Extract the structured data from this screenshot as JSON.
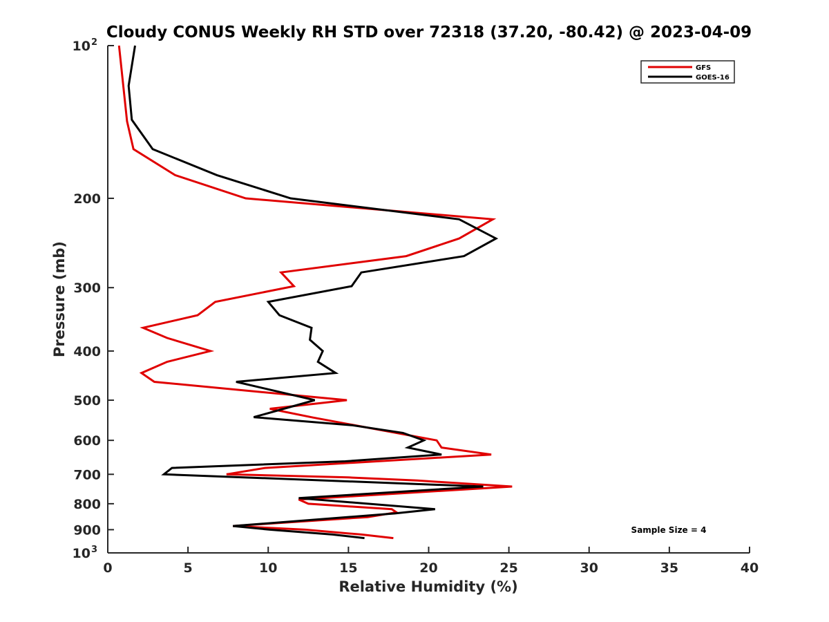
{
  "chart_data": {
    "type": "line",
    "title": "Cloudy CONUS Weekly RH STD over 72318 (37.20, -80.42) @ 2023-04-09",
    "xlabel": "Relative Humidity (%)",
    "ylabel": "Pressure (mb)",
    "xlim": [
      0,
      40
    ],
    "ylim": [
      100,
      1000
    ],
    "yscale": "log",
    "y_reversed": true,
    "grid": false,
    "x_ticks": [
      {
        "value": 0,
        "label": "0"
      },
      {
        "value": 5,
        "label": "5"
      },
      {
        "value": 10,
        "label": "10"
      },
      {
        "value": 15,
        "label": "15"
      },
      {
        "value": 20,
        "label": "20"
      },
      {
        "value": 25,
        "label": "25"
      },
      {
        "value": 30,
        "label": "30"
      },
      {
        "value": 35,
        "label": "35"
      },
      {
        "value": 40,
        "label": "40"
      }
    ],
    "y_ticks": [
      {
        "value": 100,
        "label": "10",
        "sup": "2"
      },
      {
        "value": 200,
        "label": "200"
      },
      {
        "value": 300,
        "label": "300"
      },
      {
        "value": 400,
        "label": "400"
      },
      {
        "value": 500,
        "label": "500"
      },
      {
        "value": 600,
        "label": "600"
      },
      {
        "value": 700,
        "label": "700"
      },
      {
        "value": 800,
        "label": "800"
      },
      {
        "value": 900,
        "label": "900"
      },
      {
        "value": 1000,
        "label": "10",
        "sup": "3"
      }
    ],
    "legend_position": "top-right",
    "annotation": "Sample Size = 4",
    "annotation_position": "bottom-right",
    "series": [
      {
        "name": "GFS",
        "color": "#e00000",
        "rh": [
          0.7,
          1.2,
          1.6,
          4.2,
          8.6,
          24.0,
          21.9,
          18.6,
          10.8,
          11.6,
          6.7,
          5.6,
          2.2,
          3.7,
          6.4,
          3.7,
          2.1,
          2.9,
          14.9,
          10.1,
          12.8,
          20.5,
          20.8,
          23.9,
          9.8,
          7.4,
          15.0,
          19.3,
          25.2,
          11.9,
          12.5,
          17.7,
          18.0,
          16.2,
          7.8,
          12.3,
          15.8,
          17.8
        ],
        "pressure": [
          100,
          141,
          160,
          180,
          200,
          220,
          240,
          260,
          280,
          298,
          320,
          340,
          360,
          377,
          400,
          420,
          442,
          460,
          500,
          520,
          541,
          600,
          620,
          640,
          680,
          700,
          710,
          720,
          740,
          785,
          800,
          820,
          832,
          850,
          885,
          900,
          920,
          935
        ]
      },
      {
        "name": "GOES-16",
        "color": "#000000",
        "rh": [
          1.7,
          1.3,
          1.5,
          2.8,
          6.8,
          11.4,
          21.9,
          24.2,
          22.2,
          15.8,
          15.2,
          10.0,
          10.7,
          12.7,
          12.6,
          13.4,
          13.1,
          14.2,
          8.0,
          12.9,
          9.1,
          15.2,
          18.4,
          19.7,
          18.7,
          20.8,
          14.8,
          4.0,
          3.5,
          23.4,
          11.9,
          20.4,
          17.9,
          7.8,
          10.1,
          14.0,
          16.0
        ],
        "pressure": [
          100,
          120,
          140,
          160,
          180,
          200,
          220,
          240,
          260,
          280,
          298,
          320,
          340,
          360,
          380,
          400,
          420,
          442,
          460,
          500,
          540,
          560,
          580,
          600,
          620,
          640,
          660,
          680,
          700,
          740,
          780,
          820,
          836,
          885,
          900,
          920,
          935
        ]
      }
    ]
  }
}
